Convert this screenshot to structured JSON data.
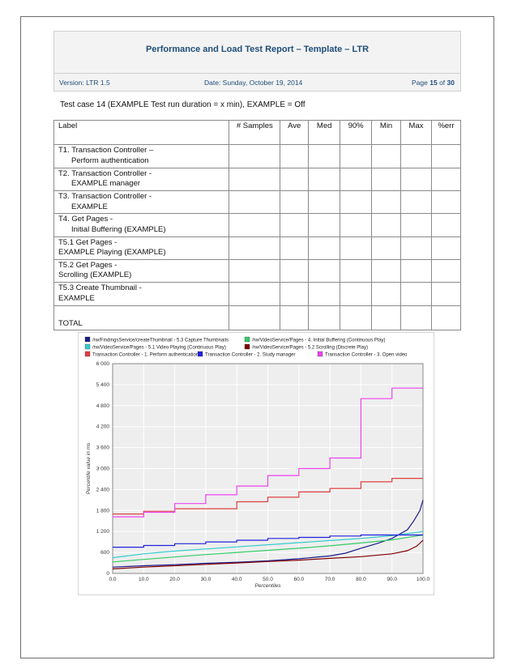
{
  "header": {
    "title": "Performance and Load Test Report – Template – LTR",
    "version": "Version: LTR 1.5",
    "date": "Date: Sunday, October 19, 2014",
    "page_prefix": "Page",
    "page_current": "15",
    "page_of": "of",
    "page_total": "30"
  },
  "test_case": "Test case 14 (EXAMPLE Test run duration = x min), EXAMPLE = Off",
  "table": {
    "columns": [
      "Label",
      "# Samples",
      "Ave",
      "Med",
      "90%",
      "Min",
      "Max",
      "%err"
    ],
    "rows": [
      {
        "line1": "T1. Transaction Controller –",
        "line2": "Perform authentication",
        "indent": true
      },
      {
        "line1": "T2. Transaction Controller -",
        "line2": "EXAMPLE manager",
        "indent": true
      },
      {
        "line1": "T3. Transaction Controller -",
        "line2": "EXAMPLE",
        "indent": true
      },
      {
        "line1": "T4. Get Pages -",
        "line2": "Initial Buffering (EXAMPLE)",
        "indent": true
      },
      {
        "line1": "T5.1 Get Pages -",
        "line2": "EXAMPLE Playing (EXAMPLE)",
        "indent": false
      },
      {
        "line1": "T5.2 Get Pages -",
        "line2": "Scrolling (EXAMPLE)",
        "indent": false
      },
      {
        "line1": "T5.3 Create Thumbnail -",
        "line2": "EXAMPLE",
        "indent": false
      },
      {
        "line1": "TOTAL",
        "line2": "",
        "indent": false
      }
    ]
  },
  "chart_data": {
    "type": "line",
    "xlabel": "Percentiles",
    "ylabel": "Percentile value in ms",
    "xlim": [
      0,
      100
    ],
    "ylim": [
      0,
      6000
    ],
    "xticks": [
      "0.0",
      "10.0",
      "20.0",
      "30.0",
      "40.0",
      "50.0",
      "60.0",
      "70.0",
      "80.0",
      "90.0",
      "100.0"
    ],
    "yticks": [
      "0",
      "600",
      "1 200",
      "1 800",
      "2 400",
      "3 000",
      "3 600",
      "4 200",
      "4 800",
      "5 400",
      "6 000"
    ],
    "grid": true,
    "legend_position": "top",
    "series": [
      {
        "name": "/rw/FindingsService/createThumbnail - 5.3 Capture Thumbnails",
        "color": "#1a1a8c",
        "x": [
          0,
          10,
          20,
          30,
          40,
          50,
          60,
          70,
          75,
          80,
          85,
          90,
          95,
          97,
          99,
          100
        ],
        "y": [
          180,
          220,
          250,
          290,
          320,
          360,
          420,
          500,
          580,
          720,
          850,
          1000,
          1250,
          1500,
          1800,
          2100
        ]
      },
      {
        "name": "/rw/VideoService/Pages - 4. Initial Buffering (Continuous Play)",
        "color": "#33cc66",
        "x": [
          0,
          10,
          20,
          30,
          40,
          50,
          60,
          70,
          80,
          90,
          100
        ],
        "y": [
          330,
          400,
          470,
          540,
          600,
          660,
          720,
          790,
          870,
          960,
          1100
        ]
      },
      {
        "name": "/rw/VideoService/Pages - 5.1 Video Playing (Continuous Play)",
        "color": "#33cccc",
        "x": [
          0,
          10,
          20,
          30,
          40,
          50,
          60,
          70,
          80,
          90,
          100
        ],
        "y": [
          450,
          560,
          640,
          700,
          760,
          820,
          880,
          940,
          1000,
          1080,
          1200
        ]
      },
      {
        "name": "/rw/VideoService/Pages - 5.2 Scrolling (Discrete Play)",
        "color": "#800000",
        "x": [
          0,
          10,
          20,
          30,
          40,
          50,
          60,
          70,
          80,
          90,
          95,
          98,
          100
        ],
        "y": [
          130,
          180,
          220,
          260,
          300,
          340,
          380,
          430,
          480,
          560,
          650,
          780,
          950
        ]
      },
      {
        "name": "Transaction Controller - 1. Perform authentication",
        "color": "#e04040",
        "x": [
          0,
          10,
          10,
          20,
          20,
          40,
          40,
          50,
          50,
          60,
          60,
          70,
          70,
          80,
          80,
          90,
          90,
          100
        ],
        "y": [
          1700,
          1700,
          1780,
          1780,
          1850,
          1850,
          2050,
          2050,
          2180,
          2180,
          2330,
          2330,
          2430,
          2430,
          2620,
          2620,
          2720,
          2720
        ]
      },
      {
        "name": "Transaction Controller - 2. Study manager",
        "color": "#2222dd",
        "x": [
          0,
          10,
          10,
          20,
          20,
          30,
          30,
          40,
          40,
          50,
          50,
          60,
          60,
          70,
          70,
          80,
          80,
          100
        ],
        "y": [
          750,
          750,
          800,
          800,
          850,
          850,
          900,
          900,
          950,
          950,
          1000,
          1000,
          1030,
          1030,
          1070,
          1070,
          1100,
          1100
        ]
      },
      {
        "name": "Transaction Controller - 3. Open video",
        "color": "#ee44ee",
        "x": [
          0,
          10,
          10,
          20,
          20,
          30,
          30,
          40,
          40,
          50,
          50,
          60,
          60,
          70,
          70,
          80,
          80,
          90,
          90,
          100
        ],
        "y": [
          1620,
          1620,
          1750,
          1750,
          2000,
          2000,
          2250,
          2250,
          2500,
          2500,
          2800,
          2800,
          3000,
          3000,
          3300,
          3300,
          5000,
          5000,
          5300,
          5300
        ]
      }
    ]
  }
}
